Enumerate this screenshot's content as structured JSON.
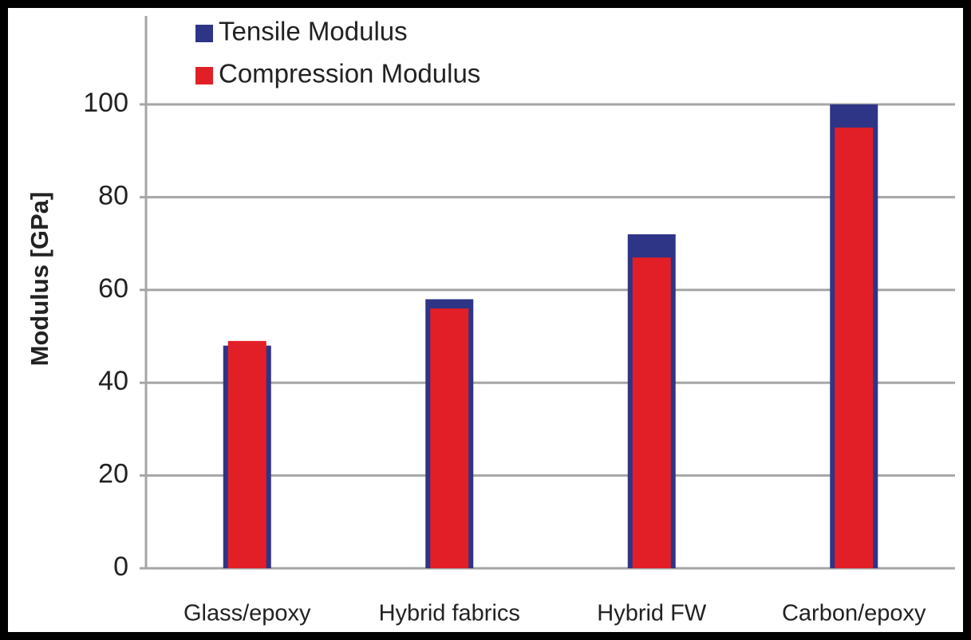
{
  "chart_data": {
    "type": "bar",
    "ylabel": "Modulus [GPa]",
    "categories": [
      "Glass/epoxy",
      "Hybrid fabrics",
      "Hybrid FW",
      "Carbon/epoxy"
    ],
    "series": [
      {
        "name": "Tensile Modulus",
        "color": "#2e3586",
        "values": [
          48,
          58,
          72,
          100
        ]
      },
      {
        "name": "Compression Modulus",
        "color": "#e21f26",
        "values": [
          49,
          56,
          67,
          95
        ]
      }
    ],
    "ylim": [
      0,
      100
    ],
    "yticks": [
      0,
      20,
      40,
      60,
      80,
      100
    ],
    "grid": true,
    "legend": "upper left"
  }
}
